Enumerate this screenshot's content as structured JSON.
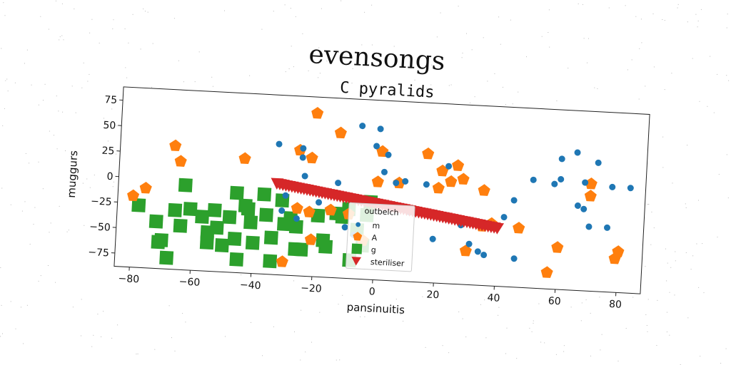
{
  "figure": {
    "suptitle": "evensongs"
  },
  "chart_data": {
    "type": "scatter",
    "title": "C pyralids",
    "xlabel": "pansinuitis",
    "ylabel": "muggurs",
    "xlim": [
      -85,
      88
    ],
    "ylim": [
      -88,
      88
    ],
    "xticks": [
      -80,
      -60,
      -40,
      -20,
      0,
      20,
      40,
      60,
      80
    ],
    "yticks": [
      -75,
      -50,
      -25,
      0,
      25,
      50,
      75
    ],
    "grid": false,
    "rotation_deg": 3,
    "legend": {
      "title": "outbelch",
      "placement": "lower-center"
    },
    "colors": {
      "m": "#1f77b4",
      "A": "#ff7f0e",
      "g": "#2ca02c",
      "steriliser": "#d62728"
    },
    "series": [
      {
        "name": "m",
        "marker": "circle",
        "points": [
          [
            -33,
            40
          ],
          [
            -25,
            37
          ],
          [
            -25,
            28
          ],
          [
            -24,
            10
          ],
          [
            -30,
            -10
          ],
          [
            -31,
            -25
          ],
          [
            -26,
            -32
          ],
          [
            -19,
            -15
          ],
          [
            -13,
            5
          ],
          [
            -10,
            -38
          ],
          [
            -7,
            -45
          ],
          [
            -6,
            62
          ],
          [
            -6,
            -60
          ],
          [
            0,
            60
          ],
          [
            -1,
            43
          ],
          [
            2,
            18
          ],
          [
            3,
            35
          ],
          [
            6,
            8
          ],
          [
            9,
            10
          ],
          [
            11,
            -20
          ],
          [
            16,
            8
          ],
          [
            19,
            -45
          ],
          [
            23,
            27
          ],
          [
            24,
            -25
          ],
          [
            28,
            -30
          ],
          [
            31,
            -48
          ],
          [
            34,
            -55
          ],
          [
            36,
            -58
          ],
          [
            42,
            -20
          ],
          [
            45,
            -3
          ],
          [
            46,
            -60
          ],
          [
            51,
            18
          ],
          [
            58,
            15
          ],
          [
            60,
            20
          ],
          [
            60,
            40
          ],
          [
            65,
            47
          ],
          [
            66,
            -5
          ],
          [
            68,
            18
          ],
          [
            68,
            -8
          ],
          [
            70,
            -25
          ],
          [
            72,
            38
          ],
          [
            76,
            -25
          ],
          [
            77,
            15
          ],
          [
            83,
            15
          ]
        ]
      },
      {
        "name": "A",
        "marker": "pentagon",
        "points": [
          [
            -80,
            -18
          ],
          [
            -76,
            -10
          ],
          [
            -67,
            33
          ],
          [
            -65,
            18
          ],
          [
            -44,
            24
          ],
          [
            -26,
            35
          ],
          [
            -21,
            72
          ],
          [
            -22,
            28
          ],
          [
            -26,
            -22
          ],
          [
            -22,
            -25
          ],
          [
            -30,
            -75
          ],
          [
            -21,
            -52
          ],
          [
            -13,
            54
          ],
          [
            -15,
            -22
          ],
          [
            -9,
            -25
          ],
          [
            -4,
            -50
          ],
          [
            0,
            8
          ],
          [
            1,
            38
          ],
          [
            7,
            8
          ],
          [
            16,
            38
          ],
          [
            20,
            5
          ],
          [
            21,
            22
          ],
          [
            24,
            12
          ],
          [
            26,
            28
          ],
          [
            28,
            15
          ],
          [
            30,
            -55
          ],
          [
            35,
            5
          ],
          [
            35,
            -30
          ],
          [
            38,
            -27
          ],
          [
            47,
            -30
          ],
          [
            57,
            -72
          ],
          [
            60,
            -47
          ],
          [
            70,
            5
          ],
          [
            70,
            17
          ],
          [
            79,
            -55
          ],
          [
            80,
            -48
          ]
        ]
      },
      {
        "name": "g",
        "marker": "square",
        "points": [
          [
            -78,
            -27
          ],
          [
            -72,
            -42
          ],
          [
            -70,
            -60
          ],
          [
            -71,
            -62
          ],
          [
            -68,
            -77
          ],
          [
            -66,
            -30
          ],
          [
            -64,
            -45
          ],
          [
            -63,
            -5
          ],
          [
            -61,
            -28
          ],
          [
            -57,
            -35
          ],
          [
            -55,
            -60
          ],
          [
            -53,
            -28
          ],
          [
            -52,
            -45
          ],
          [
            -48,
            -34
          ],
          [
            -46,
            -10
          ],
          [
            -46,
            -55
          ],
          [
            -45,
            -75
          ],
          [
            -43,
            -22
          ],
          [
            -42,
            -25
          ],
          [
            -41,
            -38
          ],
          [
            -40,
            -58
          ],
          [
            -37,
            -10
          ],
          [
            -36,
            -30
          ],
          [
            -34,
            -52
          ],
          [
            -34,
            -75
          ],
          [
            -31,
            -15
          ],
          [
            -30,
            -38
          ],
          [
            -28,
            -32
          ],
          [
            -26,
            -40
          ],
          [
            -26,
            -62
          ],
          [
            -24,
            -62
          ],
          [
            -19,
            -28
          ],
          [
            -17,
            -52
          ],
          [
            -16,
            -58
          ],
          [
            -13,
            -25
          ],
          [
            -11,
            -28
          ],
          [
            -9,
            -20
          ],
          [
            -8,
            -70
          ],
          [
            -6,
            -40
          ],
          [
            -4,
            -55
          ],
          [
            -3,
            -25
          ],
          [
            -2,
            -12
          ],
          [
            -55,
            -50
          ],
          [
            -50,
            -62
          ]
        ]
      },
      {
        "name": "steriliser",
        "marker": "triangle-down",
        "points": [
          [
            -33,
            1.5
          ],
          [
            -32,
            1
          ],
          [
            -31,
            0.5
          ],
          [
            -30,
            0
          ],
          [
            -29,
            -0.4
          ],
          [
            -28,
            -0.8
          ],
          [
            -27,
            -1.3
          ],
          [
            -26,
            -1.7
          ],
          [
            -25,
            -2.2
          ],
          [
            -24,
            -2.6
          ],
          [
            -23,
            -3
          ],
          [
            -22,
            -3.5
          ],
          [
            -21,
            -3.9
          ],
          [
            -20,
            -4.4
          ],
          [
            -19,
            -4.8
          ],
          [
            -18,
            -5.3
          ],
          [
            -17,
            -5.7
          ],
          [
            -16,
            -6.2
          ],
          [
            -15,
            -6.6
          ],
          [
            -14,
            -7
          ],
          [
            -13,
            -7.5
          ],
          [
            -12,
            -7.9
          ],
          [
            -11,
            -8.4
          ],
          [
            -10,
            -8.8
          ],
          [
            -9,
            -9.3
          ],
          [
            -8,
            -9.7
          ],
          [
            -7,
            -10.1
          ],
          [
            -6,
            -10.6
          ],
          [
            -5,
            -11
          ],
          [
            -4,
            -11.5
          ],
          [
            -3,
            -11.9
          ],
          [
            -2,
            -12.4
          ],
          [
            -1,
            -12.8
          ],
          [
            0,
            -13.2
          ],
          [
            1,
            -13.7
          ],
          [
            2,
            -14.1
          ],
          [
            3,
            -14.6
          ],
          [
            4,
            -15
          ],
          [
            5,
            -15.5
          ],
          [
            6,
            -15.9
          ],
          [
            7,
            -16.3
          ],
          [
            8,
            -16.8
          ],
          [
            9,
            -17.2
          ],
          [
            10,
            -17.7
          ],
          [
            11,
            -18.1
          ],
          [
            12,
            -18.6
          ],
          [
            13,
            -19
          ],
          [
            14,
            -19.5
          ],
          [
            15,
            -19.9
          ],
          [
            16,
            -20.3
          ],
          [
            17,
            -20.8
          ],
          [
            18,
            -21.2
          ],
          [
            19,
            -21.7
          ],
          [
            20,
            -22.1
          ],
          [
            21,
            -22.6
          ],
          [
            22,
            -23
          ],
          [
            23,
            -23.4
          ],
          [
            24,
            -23.9
          ],
          [
            25,
            -24.3
          ],
          [
            26,
            -24.8
          ],
          [
            27,
            -25.2
          ],
          [
            28,
            -25.7
          ],
          [
            29,
            -26.1
          ],
          [
            30,
            -26.5
          ],
          [
            31,
            -27
          ],
          [
            32,
            -27.4
          ],
          [
            33,
            -27.9
          ],
          [
            34,
            -28.3
          ],
          [
            35,
            -28.8
          ],
          [
            36,
            -29.2
          ],
          [
            37,
            -29.7
          ],
          [
            38,
            -30.1
          ],
          [
            39,
            -30.5
          ],
          [
            40,
            -31
          ]
        ]
      }
    ]
  }
}
